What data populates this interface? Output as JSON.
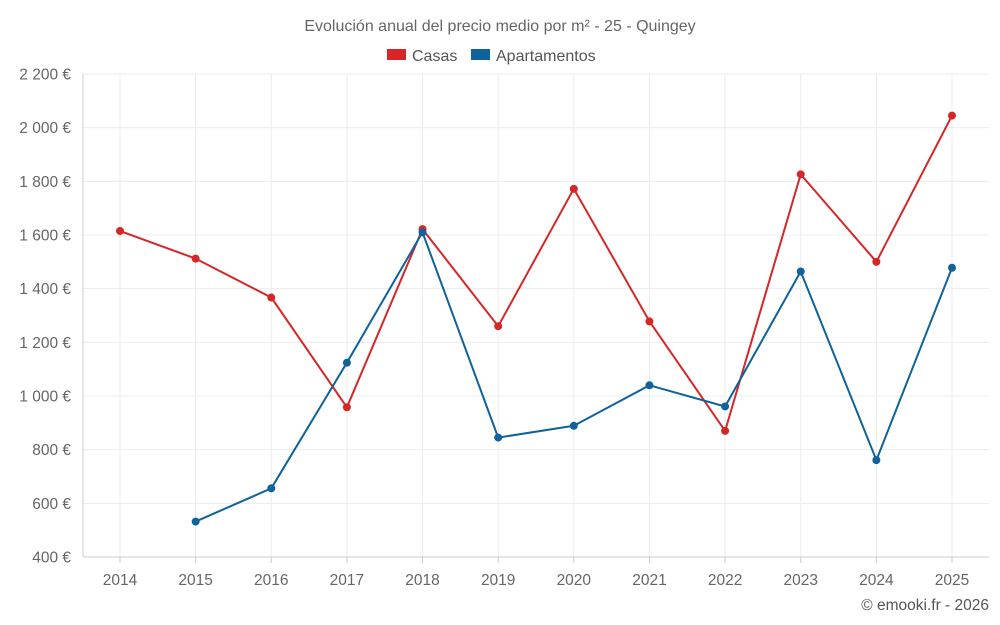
{
  "chart_data": {
    "type": "line",
    "title": "Evolución anual del precio medio por m² - 25 - Quingey",
    "xlabel": "",
    "ylabel": "",
    "categories": [
      "2014",
      "2015",
      "2016",
      "2017",
      "2018",
      "2019",
      "2020",
      "2021",
      "2022",
      "2023",
      "2024",
      "2025"
    ],
    "ylim": [
      400,
      2200
    ],
    "yticks": [
      400,
      600,
      800,
      1000,
      1200,
      1400,
      1600,
      1800,
      2000,
      2200
    ],
    "yticks_labels": [
      "400 €",
      "600 €",
      "800 €",
      "1 000 €",
      "1 200 €",
      "1 400 €",
      "1 600 €",
      "1 800 €",
      "2 000 €",
      "2 200 €"
    ],
    "grid": true,
    "legend_position": "top-center",
    "series": [
      {
        "name": "Casas",
        "color": "#d62728",
        "values": [
          1615,
          1512,
          1367,
          958,
          1622,
          1260,
          1772,
          1278,
          870,
          1826,
          1500,
          2045
        ]
      },
      {
        "name": "Apartamentos",
        "color": "#0f639a",
        "values": [
          null,
          532,
          656,
          1124,
          1610,
          845,
          889,
          1040,
          961,
          1464,
          761,
          1478
        ]
      }
    ]
  },
  "credit": "© emooki.fr - 2026"
}
